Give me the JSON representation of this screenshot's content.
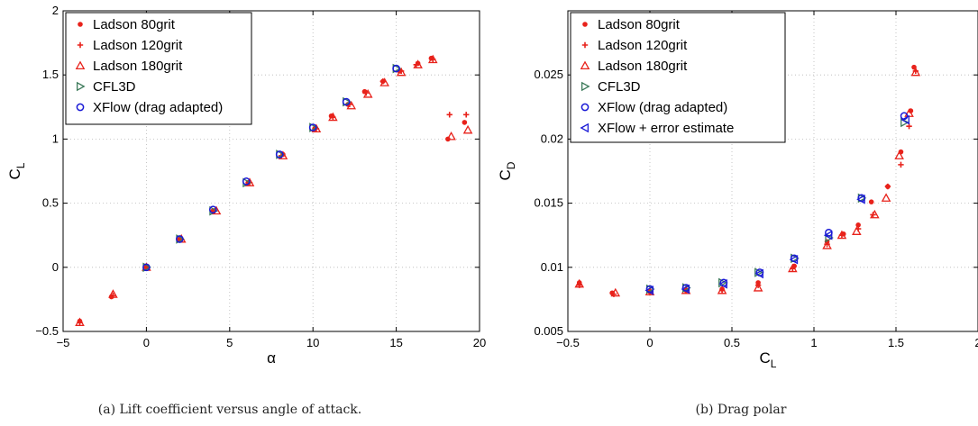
{
  "colors": {
    "ladson": "#e8221b",
    "cfl3d": "#3c7a5a",
    "xflow": "#1a1ad6",
    "grid": "#b8b8b8",
    "axis": "#000000"
  },
  "chart_data": [
    {
      "type": "scatter",
      "title": "",
      "caption": "(a) Lift coefficient versus angle of attack.",
      "xlabel": "α",
      "ylabel_main": "C",
      "ylabel_sub": "L",
      "xlim": [
        -5,
        20
      ],
      "ylim": [
        -0.5,
        2
      ],
      "xticks": [
        -5,
        0,
        5,
        10,
        15,
        20
      ],
      "yticks": [
        -0.5,
        0,
        0.5,
        1,
        1.5,
        2
      ],
      "xtick_labels": [
        "−5",
        "0",
        "5",
        "10",
        "15",
        "20"
      ],
      "ytick_labels": [
        "−0.5",
        "0",
        "0.5",
        "1",
        "1.5",
        "2"
      ],
      "grid": true,
      "legend_position": "top-left",
      "series": [
        {
          "name": "Ladson 80grit",
          "marker": "dot",
          "color_key": "ladson",
          "x": [
            -4.0,
            -2.1,
            0.0,
            2.0,
            4.0,
            6.1,
            8.2,
            10.1,
            11.1,
            12.1,
            13.1,
            14.2,
            15.2,
            16.3,
            17.1,
            18.1,
            19.1
          ],
          "y": [
            -0.42,
            -0.23,
            0.0,
            0.22,
            0.44,
            0.66,
            0.88,
            1.08,
            1.18,
            1.27,
            1.37,
            1.45,
            1.53,
            1.59,
            1.63,
            1.0,
            1.13
          ]
        },
        {
          "name": "Ladson 120grit",
          "marker": "plus",
          "color_key": "ladson",
          "x": [
            -4.0,
            -2.0,
            0.0,
            2.0,
            4.1,
            6.2,
            8.1,
            10.2,
            11.2,
            12.2,
            13.2,
            14.2,
            15.3,
            16.2,
            17.2,
            18.2,
            19.2
          ],
          "y": [
            -0.43,
            -0.22,
            0.0,
            0.22,
            0.44,
            0.66,
            0.87,
            1.08,
            1.17,
            1.27,
            1.36,
            1.45,
            1.53,
            1.58,
            1.62,
            1.19,
            1.19
          ]
        },
        {
          "name": "Ladson 180grit",
          "marker": "triangle-up",
          "color_key": "ladson",
          "x": [
            -4.0,
            -2.0,
            0.0,
            2.1,
            4.2,
            6.2,
            8.2,
            10.2,
            11.2,
            12.3,
            13.3,
            14.3,
            15.3,
            16.3,
            17.2,
            18.3,
            19.3
          ],
          "y": [
            -0.43,
            -0.21,
            0.0,
            0.22,
            0.44,
            0.66,
            0.87,
            1.08,
            1.17,
            1.26,
            1.35,
            1.44,
            1.52,
            1.58,
            1.62,
            1.02,
            1.07
          ]
        },
        {
          "name": "CFL3D",
          "marker": "triangle-right",
          "color_key": "cfl3d",
          "x": [
            0.0,
            2.0,
            4.0,
            6.0,
            8.0,
            10.0,
            12.0,
            15.0
          ],
          "y": [
            0.0,
            0.22,
            0.44,
            0.66,
            0.88,
            1.09,
            1.29,
            1.55
          ]
        },
        {
          "name": "XFlow (drag adapted)",
          "marker": "circle",
          "color_key": "xflow",
          "x": [
            0.0,
            2.0,
            4.0,
            6.0,
            8.0,
            10.0,
            12.0,
            15.0
          ],
          "y": [
            0.0,
            0.22,
            0.45,
            0.67,
            0.88,
            1.09,
            1.29,
            1.55
          ]
        }
      ]
    },
    {
      "type": "scatter",
      "title": "",
      "caption": "(b) Drag polar",
      "xlabel_main": "C",
      "xlabel_sub": "L",
      "ylabel_main": "C",
      "ylabel_sub": "D",
      "xlim": [
        -0.5,
        2
      ],
      "ylim": [
        0.005,
        0.03
      ],
      "xticks": [
        -0.5,
        0,
        0.5,
        1,
        1.5,
        2
      ],
      "yticks": [
        0.005,
        0.01,
        0.015,
        0.02,
        0.025
      ],
      "xtick_labels": [
        "−0.5",
        "0",
        "0.5",
        "1",
        "1.5",
        "2"
      ],
      "ytick_labels": [
        "0.005",
        "0.01",
        "0.015",
        "0.02",
        "0.025"
      ],
      "grid": true,
      "legend_position": "top-left",
      "series": [
        {
          "name": "Ladson 80grit",
          "marker": "dot",
          "color_key": "ladson",
          "x": [
            -0.43,
            -0.23,
            0.0,
            0.22,
            0.44,
            0.66,
            0.88,
            1.08,
            1.18,
            1.27,
            1.35,
            1.45,
            1.53,
            1.59,
            1.61
          ],
          "y": [
            0.0088,
            0.008,
            0.0081,
            0.0082,
            0.0083,
            0.0088,
            0.0101,
            0.012,
            0.0126,
            0.0133,
            0.0151,
            0.0163,
            0.019,
            0.0222,
            0.0256
          ]
        },
        {
          "name": "Ladson 120grit",
          "marker": "plus",
          "color_key": "ladson",
          "x": [
            -0.43,
            -0.22,
            0.0,
            0.22,
            0.44,
            0.66,
            0.87,
            1.08,
            1.17,
            1.27,
            1.36,
            1.45,
            1.53,
            1.58,
            1.62
          ],
          "y": [
            0.0086,
            0.0079,
            0.0081,
            0.0082,
            0.0082,
            0.0086,
            0.0099,
            0.0118,
            0.0125,
            0.013,
            0.0141,
            0.0163,
            0.018,
            0.021,
            0.0253
          ]
        },
        {
          "name": "Ladson 180grit",
          "marker": "triangle-up",
          "color_key": "ladson",
          "x": [
            -0.43,
            -0.21,
            0.0,
            0.22,
            0.44,
            0.66,
            0.87,
            1.08,
            1.17,
            1.26,
            1.37,
            1.44,
            1.52,
            1.58,
            1.62
          ],
          "y": [
            0.0087,
            0.008,
            0.0081,
            0.0082,
            0.0082,
            0.0084,
            0.0099,
            0.0117,
            0.0125,
            0.0128,
            0.0141,
            0.0154,
            0.0187,
            0.022,
            0.0252
          ]
        },
        {
          "name": "CFL3D",
          "marker": "triangle-right",
          "color_key": "cfl3d",
          "x": [
            0.0,
            0.22,
            0.44,
            0.66,
            0.88,
            1.09,
            1.29,
            1.55
          ],
          "y": [
            0.0083,
            0.0084,
            0.0088,
            0.0096,
            0.0107,
            0.0123,
            0.0154,
            0.0213
          ]
        },
        {
          "name": "XFlow (drag adapted)",
          "marker": "circle",
          "color_key": "xflow",
          "x": [
            0.0,
            0.22,
            0.45,
            0.67,
            0.88,
            1.09,
            1.29,
            1.55
          ],
          "y": [
            0.0083,
            0.0084,
            0.0088,
            0.0096,
            0.0107,
            0.0127,
            0.0154,
            0.0218
          ]
        },
        {
          "name": "XFlow + error estimate",
          "marker": "triangle-left",
          "color_key": "xflow",
          "x": [
            0.0,
            0.22,
            0.45,
            0.67,
            0.88,
            1.09,
            1.29,
            1.56
          ],
          "y": [
            0.0082,
            0.0083,
            0.0087,
            0.0095,
            0.0106,
            0.0125,
            0.0153,
            0.0215
          ]
        }
      ]
    }
  ]
}
